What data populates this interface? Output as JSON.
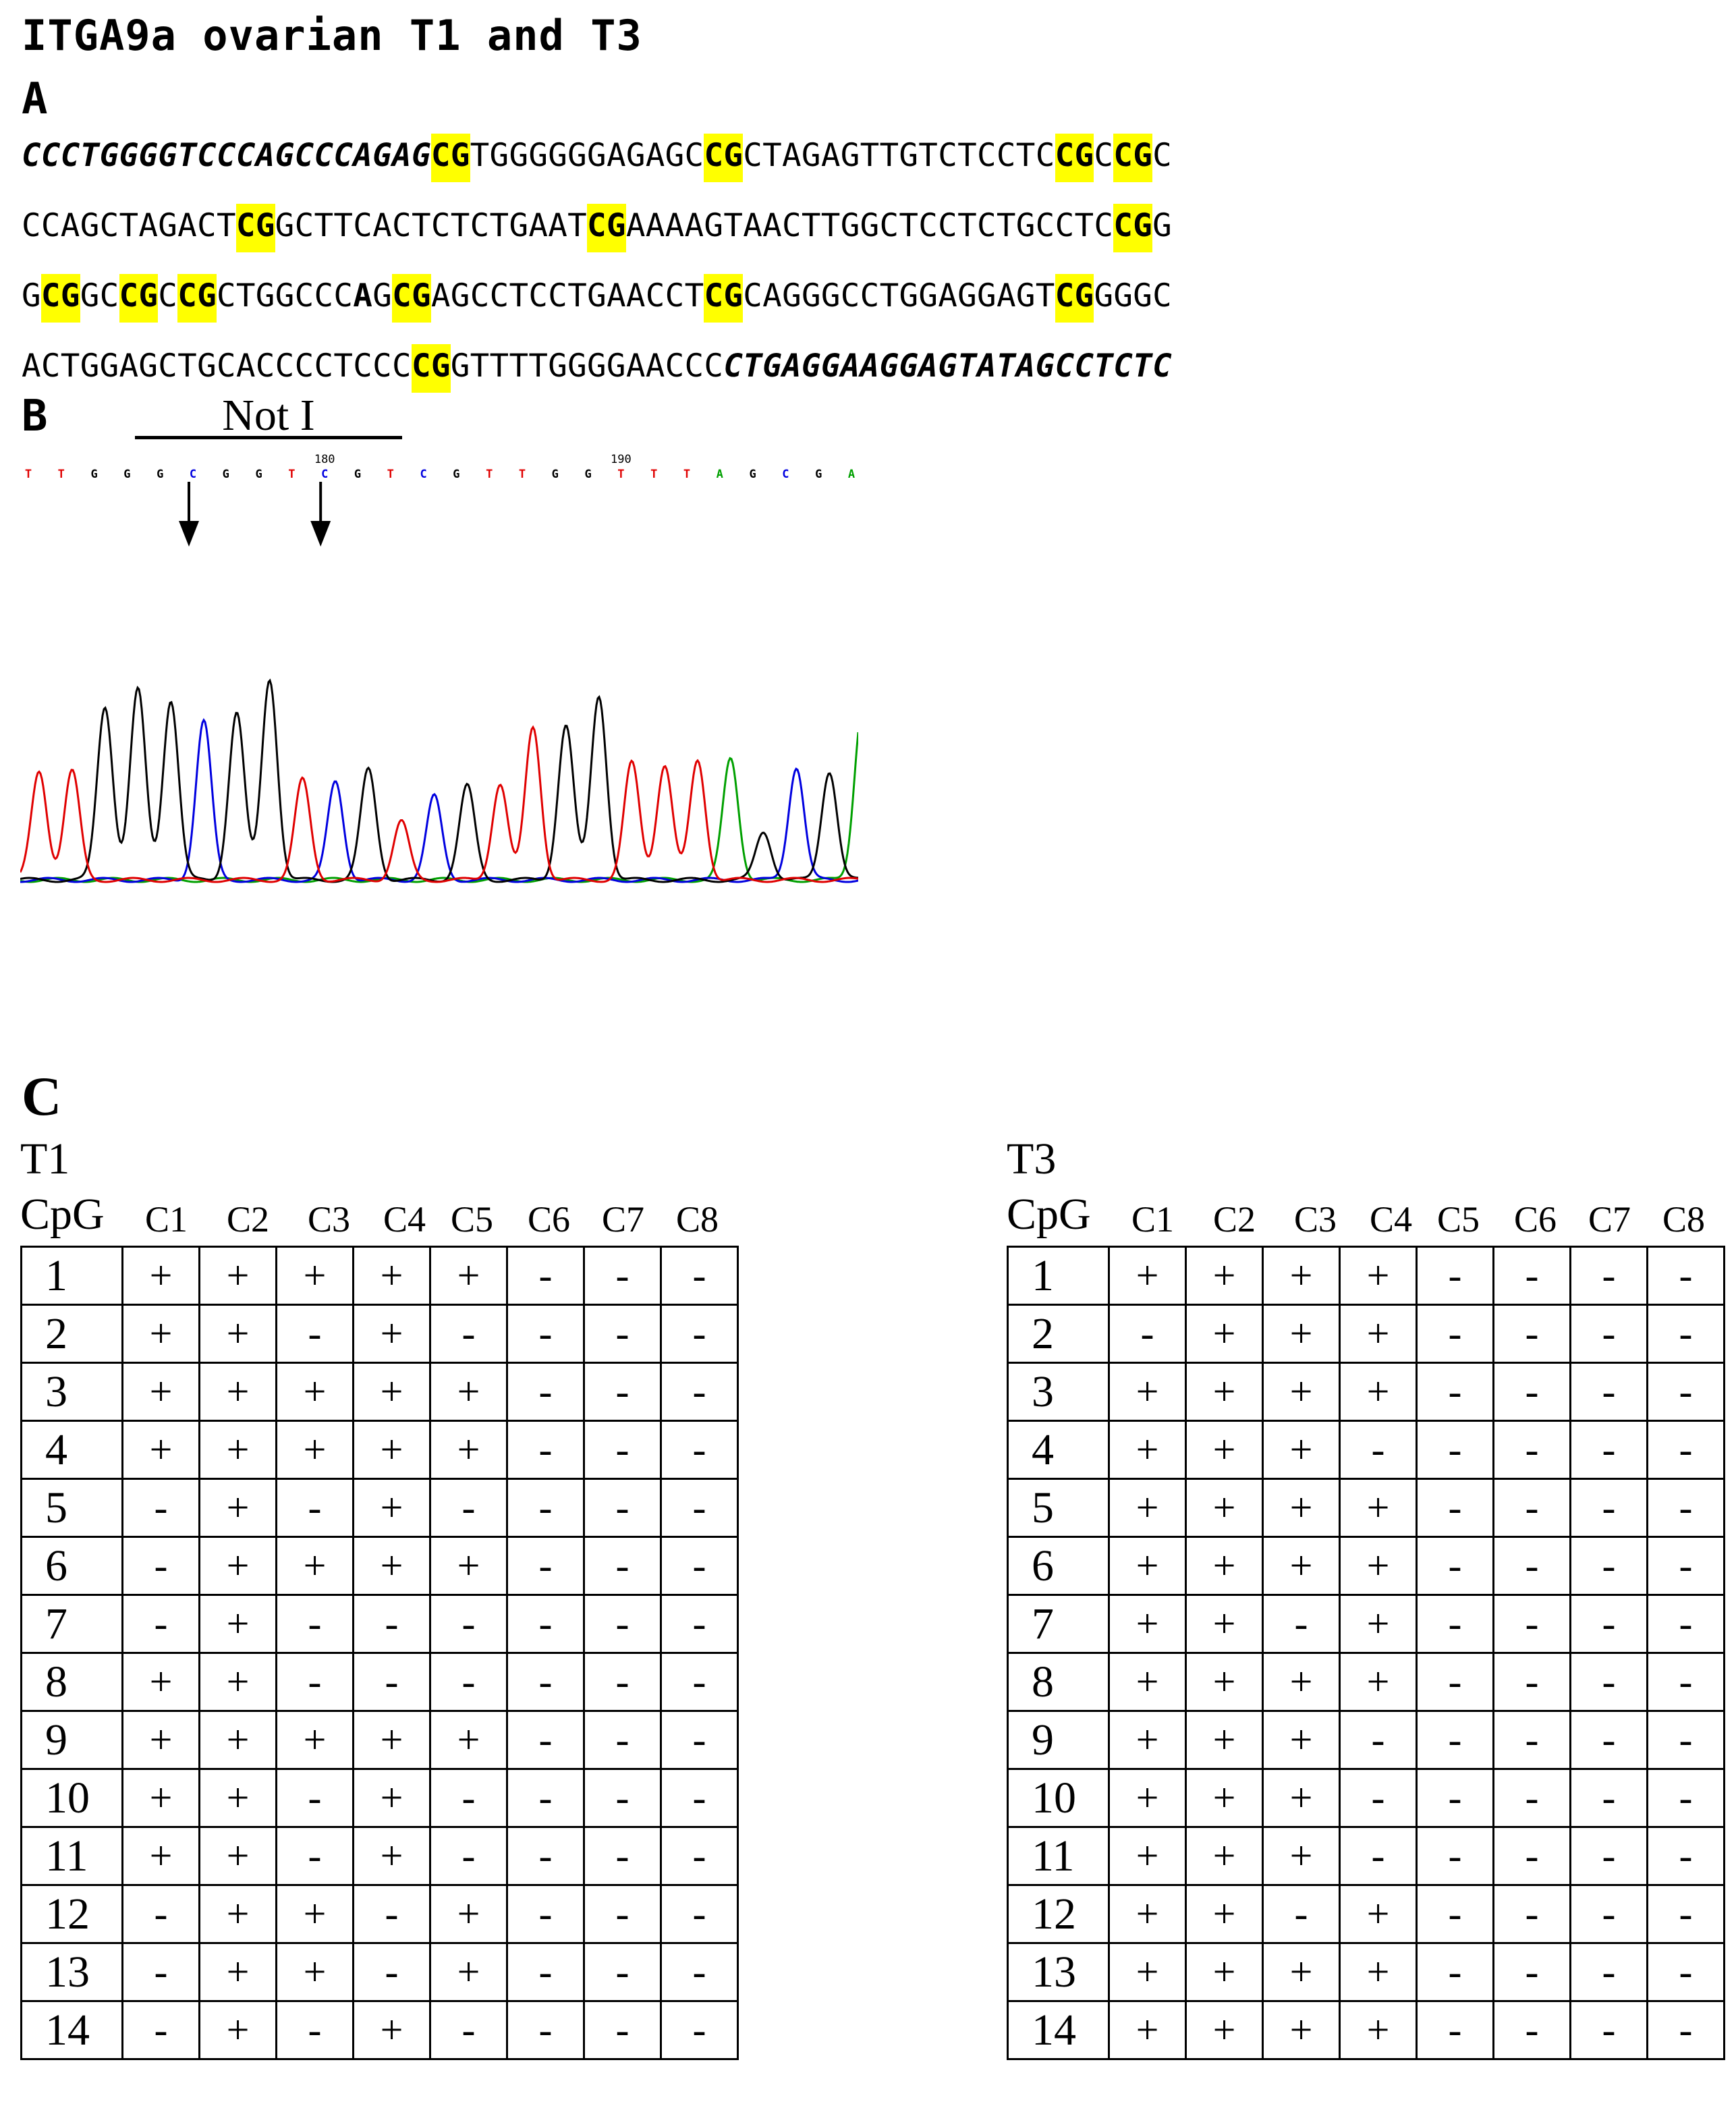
{
  "title": "ITGA9a ovarian T1 and T3",
  "panel_a": {
    "label": "A",
    "lines": [
      [
        {
          "t": "CCCTGGGGTCCCAGCCCAGAG",
          "s": "primer"
        },
        {
          "t": "CG",
          "s": "cg"
        },
        {
          "t": "TGGGGGGAGAGC",
          "s": "n"
        },
        {
          "t": "CG",
          "s": "cg"
        },
        {
          "t": "CTAGAGTTGTCTCCTC",
          "s": "n"
        },
        {
          "t": "CG",
          "s": "cg"
        },
        {
          "t": "C",
          "s": "n"
        },
        {
          "t": "CG",
          "s": "cg"
        },
        {
          "t": "C",
          "s": "n"
        }
      ],
      [
        {
          "t": "CCAGCTAGACT",
          "s": "n"
        },
        {
          "t": "CG",
          "s": "cg"
        },
        {
          "t": "GCTTCACTCTCTGAAT",
          "s": "n"
        },
        {
          "t": "CG",
          "s": "cg"
        },
        {
          "t": "AAAAGTAACTTGGCTCCTCTGCCTC",
          "s": "n"
        },
        {
          "t": "CG",
          "s": "cg"
        },
        {
          "t": "G",
          "s": "n"
        }
      ],
      [
        {
          "t": "G",
          "s": "n"
        },
        {
          "t": "CG",
          "s": "cg"
        },
        {
          "t": "GC",
          "s": "n"
        },
        {
          "t": "CG",
          "s": "cg"
        },
        {
          "t": "C",
          "s": "n"
        },
        {
          "t": "CG",
          "s": "cg"
        },
        {
          "t": "CTGGCCC",
          "s": "n"
        },
        {
          "t": "A",
          "s": "bold"
        },
        {
          "t": "G",
          "s": "n"
        },
        {
          "t": "CG",
          "s": "cg"
        },
        {
          "t": "AGCCTCCTGAACCT",
          "s": "n"
        },
        {
          "t": "CG",
          "s": "cg"
        },
        {
          "t": "CAGGGCCTGGAGGAGT",
          "s": "n"
        },
        {
          "t": "CG",
          "s": "cg"
        },
        {
          "t": "GGGC",
          "s": "n"
        }
      ],
      [
        {
          "t": "ACTGGAGCTGCACCCCTCCC",
          "s": "n"
        },
        {
          "t": "CG",
          "s": "cg"
        },
        {
          "t": "GTTTTGGGGAACCC",
          "s": "n"
        },
        {
          "t": "CTGAGGAAGGAGTATAGCCTCTC",
          "s": "primer"
        }
      ]
    ]
  },
  "panel_b": {
    "label": "B",
    "site_label": "Not I",
    "bases": [
      "T",
      "T",
      "G",
      "G",
      "G",
      "C",
      "G",
      "G",
      "T",
      "C",
      "G",
      "T",
      "C",
      "G",
      "T",
      "T",
      "G",
      "G",
      "T",
      "T",
      "T",
      "A",
      "G",
      "C",
      "G",
      "A"
    ],
    "base_colors": {
      "A": "#00a000",
      "C": "#0000e0",
      "G": "#000000",
      "T": "#e00000"
    },
    "position_markers": [
      {
        "label": "180",
        "base_index": 9
      },
      {
        "label": "190",
        "base_index": 18
      }
    ],
    "arrow_base_indices": [
      5,
      9
    ]
  },
  "panel_c": {
    "label": "C",
    "row_header": "CpG",
    "columns": [
      "C1",
      "C2",
      "C3",
      "C4",
      "C5",
      "C6",
      "C7",
      "C8"
    ],
    "tables": [
      {
        "name": "T1",
        "rows": [
          {
            "cpg": "1",
            "values": [
              "+",
              "+",
              "+",
              "+",
              "+",
              "-",
              "-",
              "-"
            ]
          },
          {
            "cpg": "2",
            "values": [
              "+",
              "+",
              "-",
              "+",
              "-",
              "-",
              "-",
              "-"
            ]
          },
          {
            "cpg": "3",
            "values": [
              "+",
              "+",
              "+",
              "+",
              "+",
              "-",
              "-",
              "-"
            ]
          },
          {
            "cpg": "4",
            "values": [
              "+",
              "+",
              "+",
              "+",
              "+",
              "-",
              "-",
              "-"
            ]
          },
          {
            "cpg": "5",
            "values": [
              "-",
              "+",
              "-",
              "+",
              "-",
              "-",
              "-",
              "-"
            ]
          },
          {
            "cpg": "6",
            "values": [
              "-",
              "+",
              "+",
              "+",
              "+",
              "-",
              "-",
              "-"
            ]
          },
          {
            "cpg": "7",
            "values": [
              "-",
              "+",
              "-",
              "-",
              "-",
              "-",
              "-",
              "-"
            ]
          },
          {
            "cpg": "8",
            "values": [
              "+",
              "+",
              "-",
              "-",
              "-",
              "-",
              "-",
              "-"
            ]
          },
          {
            "cpg": "9",
            "values": [
              "+",
              "+",
              "+",
              "+",
              "+",
              "-",
              "-",
              "-"
            ]
          },
          {
            "cpg": "10",
            "values": [
              "+",
              "+",
              "-",
              "+",
              "-",
              "-",
              "-",
              "-"
            ]
          },
          {
            "cpg": "11",
            "values": [
              "+",
              "+",
              "-",
              "+",
              "-",
              "-",
              "-",
              "-"
            ]
          },
          {
            "cpg": "12",
            "values": [
              "-",
              "+",
              "+",
              "-",
              "+",
              "-",
              "-",
              "-"
            ]
          },
          {
            "cpg": "13",
            "values": [
              "-",
              "+",
              "+",
              "-",
              "+",
              "-",
              "-",
              "-"
            ]
          },
          {
            "cpg": "14",
            "values": [
              "-",
              "+",
              "-",
              "+",
              "-",
              "-",
              "-",
              "-"
            ]
          }
        ]
      },
      {
        "name": "T3",
        "rows": [
          {
            "cpg": "1",
            "values": [
              "+",
              "+",
              "+",
              "+",
              "-",
              "-",
              "-",
              "-"
            ]
          },
          {
            "cpg": "2",
            "values": [
              "-",
              "+",
              "+",
              "+",
              "-",
              "-",
              "-",
              "-"
            ]
          },
          {
            "cpg": "3",
            "values": [
              "+",
              "+",
              "+",
              "+",
              "-",
              "-",
              "-",
              "-"
            ]
          },
          {
            "cpg": "4",
            "values": [
              "+",
              "+",
              "+",
              "-",
              "-",
              "-",
              "-",
              "-"
            ]
          },
          {
            "cpg": "5",
            "values": [
              "+",
              "+",
              "+",
              "+",
              "-",
              "-",
              "-",
              "-"
            ]
          },
          {
            "cpg": "6",
            "values": [
              "+",
              "+",
              "+",
              "+",
              "-",
              "-",
              "-",
              "-"
            ]
          },
          {
            "cpg": "7",
            "values": [
              "+",
              "+",
              "-",
              "+",
              "-",
              "-",
              "-",
              "-"
            ]
          },
          {
            "cpg": "8",
            "values": [
              "+",
              "+",
              "+",
              "+",
              "-",
              "-",
              "-",
              "-"
            ]
          },
          {
            "cpg": "9",
            "values": [
              "+",
              "+",
              "+",
              "-",
              "-",
              "-",
              "-",
              "-"
            ]
          },
          {
            "cpg": "10",
            "values": [
              "+",
              "+",
              "+",
              "-",
              "-",
              "-",
              "-",
              "-"
            ]
          },
          {
            "cpg": "11",
            "values": [
              "+",
              "+",
              "+",
              "-",
              "-",
              "-",
              "-",
              "-"
            ]
          },
          {
            "cpg": "12",
            "values": [
              "+",
              "+",
              "-",
              "+",
              "-",
              "-",
              "-",
              "-"
            ]
          },
          {
            "cpg": "13",
            "values": [
              "+",
              "+",
              "+",
              "+",
              "-",
              "-",
              "-",
              "-"
            ]
          },
          {
            "cpg": "14",
            "values": [
              "+",
              "+",
              "+",
              "+",
              "-",
              "-",
              "-",
              "-"
            ]
          }
        ]
      }
    ]
  }
}
